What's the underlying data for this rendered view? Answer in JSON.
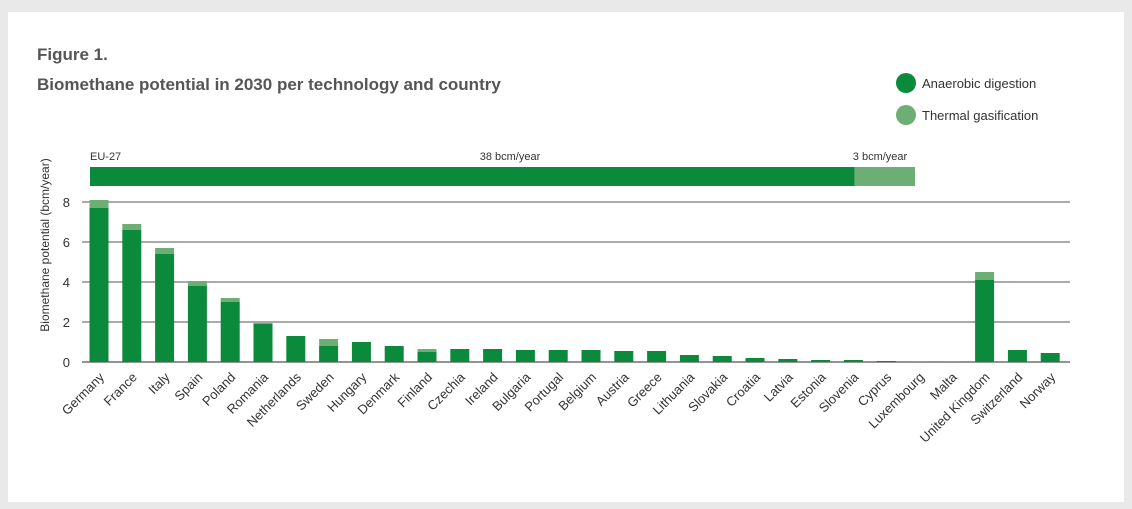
{
  "figure": {
    "label": "Figure 1.",
    "title": "Biomethane potential in 2030 per technology and country"
  },
  "colors": {
    "anaerobic": "#0a8a3a",
    "thermal": "#6dae74",
    "grid": "#555555"
  },
  "legend": {
    "anaerobic": "Anaerobic digestion",
    "thermal": "Thermal gasification"
  },
  "eu_total": {
    "label": "EU-27",
    "anaerobic_text": "38 bcm/year",
    "thermal_text": "3 bcm/year",
    "anaerobic": 38,
    "thermal": 3
  },
  "chart_data": {
    "type": "bar",
    "stacked": true,
    "ylabel": "Biomethane potential (bcm/year)",
    "ylim": [
      0,
      8
    ],
    "yticks": [
      0,
      2,
      4,
      6,
      8
    ],
    "grid": true,
    "legend_position": "top-right",
    "categories": [
      "Germany",
      "France",
      "Italy",
      "Spain",
      "Poland",
      "Romania",
      "Netherlands",
      "Sweden",
      "Hungary",
      "Denmark",
      "Finland",
      "Czechia",
      "Ireland",
      "Bulgaria",
      "Portugal",
      "Belgium",
      "Austria",
      "Greece",
      "Lithuania",
      "Slovakia",
      "Croatia",
      "Latvia",
      "Estonia",
      "Slovenia",
      "Cyprus",
      "Luxembourg",
      "Malta",
      "United Kingdom",
      "Switzerland",
      "Norway"
    ],
    "series": [
      {
        "name": "Anaerobic digestion",
        "values": [
          7.7,
          6.6,
          5.4,
          3.8,
          3.0,
          1.9,
          1.3,
          0.8,
          1.0,
          0.8,
          0.5,
          0.65,
          0.65,
          0.6,
          0.6,
          0.6,
          0.55,
          0.55,
          0.35,
          0.3,
          0.2,
          0.15,
          0.1,
          0.1,
          0.05,
          0.02,
          0.02,
          4.1,
          0.6,
          0.45
        ]
      },
      {
        "name": "Thermal gasification",
        "values": [
          0.4,
          0.3,
          0.3,
          0.25,
          0.2,
          0.05,
          0.0,
          0.35,
          0.0,
          0.0,
          0.15,
          0.0,
          0.0,
          0.0,
          0.0,
          0.0,
          0.0,
          0.0,
          0.0,
          0.0,
          0.0,
          0.0,
          0.0,
          0.0,
          0.0,
          0.0,
          0.0,
          0.4,
          0.0,
          0.0
        ]
      }
    ]
  }
}
